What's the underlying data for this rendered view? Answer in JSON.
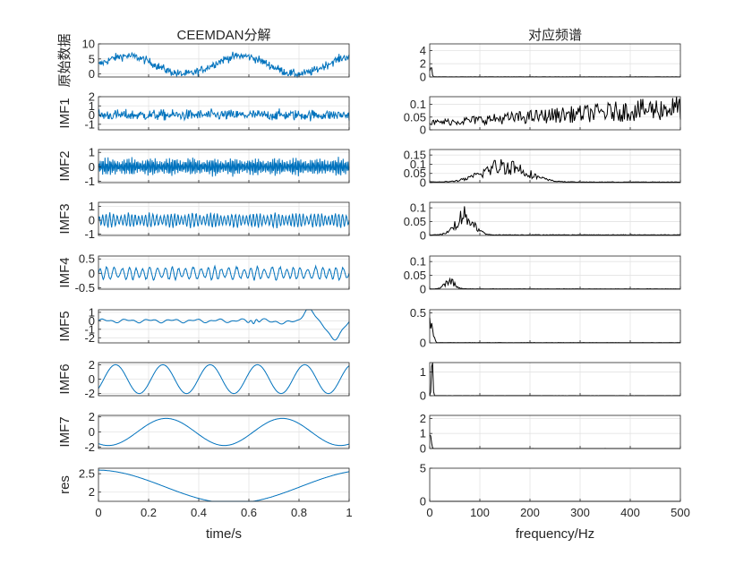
{
  "chart_data": [
    {
      "type": "line",
      "column": "left",
      "title": "CEEMDAN分解",
      "xlabel": "time/s",
      "xlim": [
        0,
        1
      ],
      "x_ticks": [
        0,
        0.2,
        0.4,
        0.6,
        0.8,
        1
      ],
      "x_tick_labels": [
        "0",
        "0.2",
        "0.4",
        "0.6",
        "0.8",
        "1"
      ],
      "line_color": "#0072BD",
      "grid": true,
      "panels": [
        {
          "ylabel": "原始数据",
          "ylim": [
            -1,
            10
          ],
          "yticks": [
            0,
            5,
            10
          ],
          "ytick_labels": [
            "0",
            "5",
            "10"
          ],
          "signal": {
            "kind": "original",
            "offset": 3,
            "components": [
              {
                "amplitude": 3,
                "freq_hz": 2.2,
                "phase": 0
              }
            ],
            "noise": 1.3
          }
        },
        {
          "ylabel": "IMF1",
          "ylim": [
            -1.6,
            2
          ],
          "yticks": [
            -1,
            0,
            1,
            2
          ],
          "ytick_labels": [
            "-1",
            "0",
            "1",
            "2"
          ],
          "signal": {
            "kind": "noise",
            "amplitude": 0.55,
            "clip": 1.5
          }
        },
        {
          "ylabel": "IMF2",
          "ylim": [
            -1.1,
            1.2
          ],
          "yticks": [
            -1,
            0,
            1
          ],
          "ytick_labels": [
            "-1",
            "0",
            "1"
          ],
          "signal": {
            "kind": "bandnoise",
            "amplitude": 0.6,
            "freq_hz": 160,
            "clip": 1.05
          }
        },
        {
          "ylabel": "IMF3",
          "ylim": [
            -1.1,
            1.3
          ],
          "yticks": [
            -1,
            0,
            1
          ],
          "ytick_labels": [
            "-1",
            "0",
            "1"
          ],
          "signal": {
            "kind": "bandnoise",
            "amplitude": 0.5,
            "freq_hz": 70,
            "clip": 1.05
          }
        },
        {
          "ylabel": "IMF4",
          "ylim": [
            -0.55,
            0.6
          ],
          "yticks": [
            -0.5,
            0,
            0.5
          ],
          "ytick_labels": [
            "-0.5",
            "0",
            "0.5"
          ],
          "signal": {
            "kind": "bandnoise",
            "amplitude": 0.22,
            "freq_hz": 35,
            "clip": 0.55
          }
        },
        {
          "ylabel": "IMF5",
          "ylim": [
            -2.6,
            1.3
          ],
          "yticks": [
            -2,
            -1,
            0,
            1
          ],
          "ytick_labels": [
            "-2",
            "-1",
            "0",
            "1"
          ],
          "signal": {
            "kind": "imf5"
          }
        },
        {
          "ylabel": "IMF6",
          "ylim": [
            -2.3,
            2.3
          ],
          "yticks": [
            -2,
            0,
            2
          ],
          "ytick_labels": [
            "-2",
            "0",
            "2"
          ],
          "signal": {
            "kind": "sine",
            "amplitude": 2,
            "freq_hz": 5.3,
            "phase": -0.7
          }
        },
        {
          "ylabel": "IMF7",
          "ylim": [
            -2.2,
            2.2
          ],
          "yticks": [
            -2,
            0,
            2
          ],
          "ytick_labels": [
            "-2",
            "0",
            "2"
          ],
          "signal": {
            "kind": "sine",
            "amplitude": 1.8,
            "freq_hz": 2.16,
            "phase": -2.1
          }
        },
        {
          "ylabel": "res",
          "ylim": [
            1.75,
            2.65
          ],
          "yticks": [
            2,
            2.5
          ],
          "ytick_labels": [
            "2",
            "2.5"
          ],
          "signal": {
            "kind": "res"
          }
        }
      ]
    },
    {
      "type": "line",
      "column": "right",
      "title": "对应频谱",
      "xlabel": "frequency/Hz",
      "xlim": [
        0,
        500
      ],
      "x_ticks": [
        0,
        100,
        200,
        300,
        400,
        500
      ],
      "x_tick_labels": [
        "0",
        "100",
        "200",
        "300",
        "400",
        "500"
      ],
      "line_color": "#000000",
      "grid": true,
      "panels": [
        {
          "ylim": [
            0,
            5
          ],
          "yticks": [
            0,
            2,
            4
          ],
          "ytick_labels": [
            "0",
            "2",
            "4"
          ],
          "spectrum": {
            "peak_hz": 2,
            "peak": 2.2,
            "width": 3,
            "floor": 0.02
          }
        },
        {
          "ylim": [
            0,
            0.13
          ],
          "yticks": [
            0,
            0.05,
            0.1
          ],
          "ytick_labels": [
            "0",
            "0.05",
            "0.1"
          ],
          "spectrum": {
            "kind": "rising",
            "start": 0.02,
            "end": 0.09,
            "floor": 0.01
          }
        },
        {
          "ylim": [
            0,
            0.18
          ],
          "yticks": [
            0,
            0.05,
            0.1,
            0.15
          ],
          "ytick_labels": [
            "0",
            "0.05",
            "0.1",
            "0.15"
          ],
          "spectrum": {
            "peak_hz": 150,
            "peak": 0.1,
            "width": 60,
            "floor": 0.003
          }
        },
        {
          "ylim": [
            0,
            0.12
          ],
          "yticks": [
            0,
            0.05,
            0.1
          ],
          "ytick_labels": [
            "0",
            "0.05",
            "0.1"
          ],
          "spectrum": {
            "peak_hz": 70,
            "peak": 0.075,
            "width": 25,
            "floor": 0.002
          }
        },
        {
          "ylim": [
            0,
            0.12
          ],
          "yticks": [
            0,
            0.05,
            0.1
          ],
          "ytick_labels": [
            "0",
            "0.05",
            "0.1"
          ],
          "spectrum": {
            "peak_hz": 40,
            "peak": 0.03,
            "width": 14,
            "floor": 0.001
          }
        },
        {
          "ylim": [
            0,
            0.55
          ],
          "yticks": [
            0,
            0.5
          ],
          "ytick_labels": [
            "0",
            "0.5"
          ],
          "spectrum": {
            "peak_hz": 3,
            "peak": 0.45,
            "width": 5,
            "floor": 0.004
          }
        },
        {
          "ylim": [
            0,
            1.4
          ],
          "yticks": [
            0,
            1
          ],
          "ytick_labels": [
            "0",
            "1"
          ],
          "spectrum": {
            "peak_hz": 5,
            "peak": 1.3,
            "width": 2,
            "floor": 0.003
          }
        },
        {
          "ylim": [
            0,
            2.2
          ],
          "yticks": [
            0,
            1,
            2
          ],
          "ytick_labels": [
            "0",
            "1",
            "2"
          ],
          "spectrum": {
            "peak_hz": 2,
            "peak": 1.8,
            "width": 2,
            "floor": 0.002
          }
        },
        {
          "ylim": [
            0,
            5
          ],
          "yticks": [
            0,
            5
          ],
          "ytick_labels": [
            "0",
            "5"
          ],
          "spectrum": {
            "peak_hz": 0,
            "peak": 0,
            "width": 1,
            "floor": 0
          }
        }
      ]
    }
  ]
}
